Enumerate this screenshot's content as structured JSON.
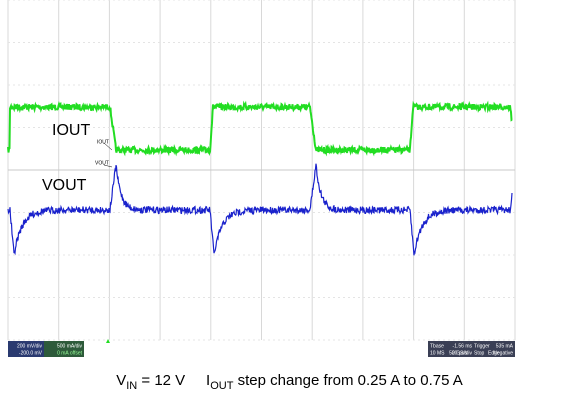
{
  "traces": {
    "iout_label": "IOUT",
    "vout_label": "VOUT",
    "iout_marker": "IOUT",
    "vout_marker": "VOUT"
  },
  "status": {
    "ch1_scale": "200 mV/div",
    "ch1_offset": "-200.0 mV",
    "ch2_scale": "500 mA/div",
    "ch2_offset": "0 mA offset",
    "tbase": "Tbase",
    "tbase_value": "-1.56 ms",
    "trigger": "Trigger",
    "time_div": "500 µs/div",
    "stop": "Stop",
    "trigger_level": "535 mA",
    "samples": "10 MS",
    "rate": "2 GS/s",
    "edge": "Edge",
    "slope": "Negative"
  },
  "caption": {
    "vin_symbol": "V",
    "vin_sub": "IN",
    "vin_text": " = 12 V",
    "iout_symbol": "I",
    "iout_sub": "OUT",
    "iout_text": " step change from 0.25 A to 0.75 A"
  }
}
